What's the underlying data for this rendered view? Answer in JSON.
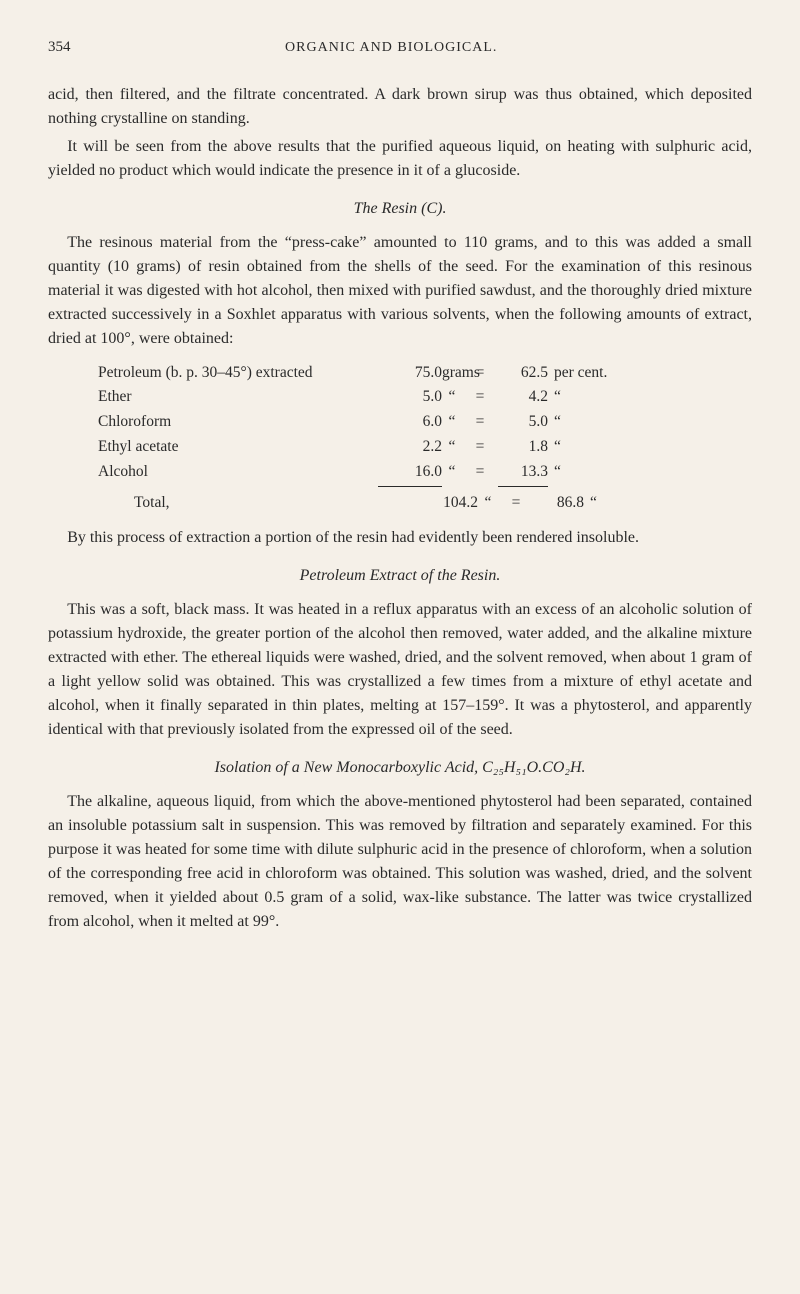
{
  "header": {
    "page_number": "354",
    "running_head": "ORGANIC AND BIOLOGICAL."
  },
  "para1": "acid, then filtered, and the filtrate concentrated. A dark brown sirup was thus obtained, which deposited nothing crystalline on standing.",
  "para2": "It will be seen from the above results that the purified aqueous liquid, on heating with sulphuric acid, yielded no product which would indicate the presence in it of a glucoside.",
  "section1_title": "The Resin (C).",
  "para3": "The resinous material from the “press-cake” amounted to 110 grams, and to this was added a small quantity (10 grams) of resin obtained from the shells of the seed. For the examination of this resinous material it was digested with hot alcohol, then mixed with purified sawdust, and the thoroughly dried mixture extracted successively in a Soxhlet apparatus with various solvents, when the following amounts of extract, dried at 100°, were obtained:",
  "table": {
    "rows": [
      {
        "label": "Petroleum (b. p. 30–45°) extracted",
        "amount": "75.0",
        "unit": "grams",
        "eq": "=",
        "pct": "62.5",
        "pct_unit": "per cent."
      },
      {
        "label": "Ether",
        "mark": "“",
        "amount": "5.0",
        "unit": "“",
        "eq": "=",
        "pct": "4.2",
        "pct_unit": "“"
      },
      {
        "label": "Chloroform",
        "mark": "“",
        "amount": "6.0",
        "unit": "“",
        "eq": "=",
        "pct": "5.0",
        "pct_unit": "“"
      },
      {
        "label": "Ethyl acetate",
        "mark": "“",
        "amount": "2.2",
        "unit": "“",
        "eq": "=",
        "pct": "1.8",
        "pct_unit": "“"
      },
      {
        "label": "Alcohol",
        "mark": "“",
        "amount": "16.0",
        "unit": "“",
        "eq": "=",
        "pct": "13.3",
        "pct_unit": "“"
      }
    ],
    "total": {
      "label": "Total,",
      "amount": "104.2",
      "unit": "“",
      "eq": "=",
      "pct": "86.8",
      "pct_unit": "“"
    }
  },
  "para4": "By this process of extraction a portion of the resin had evidently been rendered insoluble.",
  "section2_title": "Petroleum Extract of the Resin.",
  "para5": "This was a soft, black mass. It was heated in a reflux apparatus with an excess of an alcoholic solution of potassium hydroxide, the greater portion of the alcohol then removed, water added, and the alkaline mixture extracted with ether. The ethereal liquids were washed, dried, and the solvent removed, when about 1 gram of a light yellow solid was obtained. This was crystallized a few times from a mixture of ethyl acetate and alcohol, when it finally separated in thin plates, melting at 157–159°. It was a phytosterol, and apparently identical with that previously isolated from the expressed oil of the seed.",
  "section3_title": "Isolation of a New Monocarboxylic Acid, C₂₅H₅₁O.CO₂H.",
  "para6": "The alkaline, aqueous liquid, from which the above-mentioned phytosterol had been separated, contained an insoluble potassium salt in suspension. This was removed by filtration and separately examined. For this purpose it was heated for some time with dilute sulphuric acid in the presence of chloroform, when a solution of the corresponding free acid in chloroform was obtained. This solution was washed, dried, and the solvent removed, when it yielded about 0.5 gram of a solid, wax-like substance. The latter was twice crystallized from alcohol, when it melted at 99°."
}
